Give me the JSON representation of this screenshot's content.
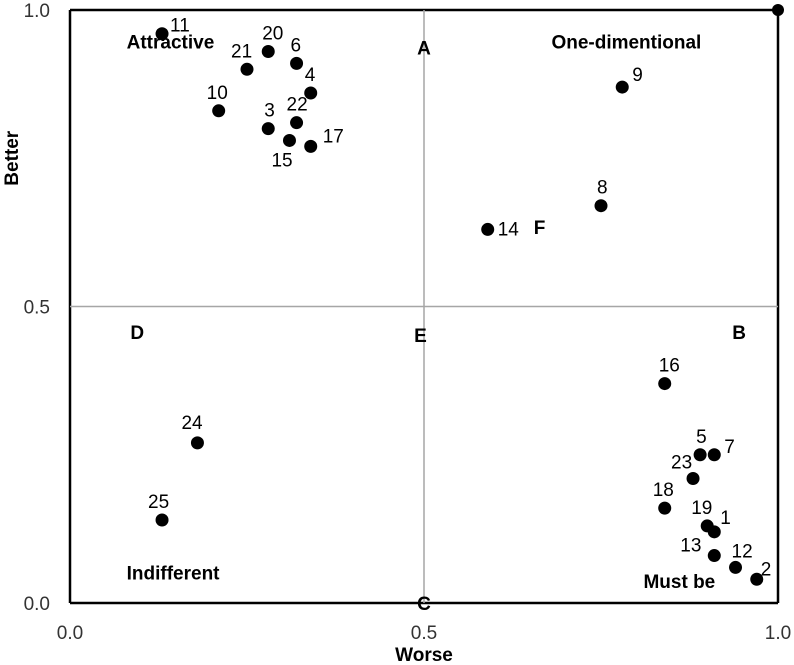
{
  "chart_data": {
    "type": "scatter",
    "title": "",
    "xlabel": "Worse",
    "ylabel": "Better",
    "xlim": [
      0.0,
      1.0
    ],
    "ylim": [
      0.0,
      1.0
    ],
    "x_ticks": [
      "0.0",
      "0.5",
      "1.0"
    ],
    "y_ticks": [
      "0.0",
      "0.5",
      "1.0"
    ],
    "divider_x": 0.5,
    "divider_y": 0.5,
    "grid": false,
    "points": [
      {
        "label": "11",
        "x": 0.13,
        "y": 0.96
      },
      {
        "label": "20",
        "x": 0.28,
        "y": 0.93
      },
      {
        "label": "21",
        "x": 0.25,
        "y": 0.9
      },
      {
        "label": "6",
        "x": 0.32,
        "y": 0.91
      },
      {
        "label": "4",
        "x": 0.34,
        "y": 0.86
      },
      {
        "label": "10",
        "x": 0.21,
        "y": 0.83
      },
      {
        "label": "22",
        "x": 0.32,
        "y": 0.81
      },
      {
        "label": "3",
        "x": 0.28,
        "y": 0.8
      },
      {
        "label": "17",
        "x": 0.34,
        "y": 0.77
      },
      {
        "label": "15",
        "x": 0.31,
        "y": 0.78
      },
      {
        "label": "9",
        "x": 0.78,
        "y": 0.87
      },
      {
        "label": "8",
        "x": 0.75,
        "y": 0.67
      },
      {
        "label": "14",
        "x": 0.59,
        "y": 0.63
      },
      {
        "label": "16",
        "x": 0.84,
        "y": 0.37
      },
      {
        "label": "5",
        "x": 0.89,
        "y": 0.25
      },
      {
        "label": "7",
        "x": 0.91,
        "y": 0.25
      },
      {
        "label": "23",
        "x": 0.88,
        "y": 0.21
      },
      {
        "label": "18",
        "x": 0.84,
        "y": 0.16
      },
      {
        "label": "19",
        "x": 0.9,
        "y": 0.13
      },
      {
        "label": "1",
        "x": 0.91,
        "y": 0.12
      },
      {
        "label": "13",
        "x": 0.91,
        "y": 0.08
      },
      {
        "label": "12",
        "x": 0.94,
        "y": 0.06
      },
      {
        "label": "2",
        "x": 0.97,
        "y": 0.04
      },
      {
        "label": "24",
        "x": 0.18,
        "y": 0.27
      },
      {
        "label": "25",
        "x": 0.13,
        "y": 0.14
      }
    ],
    "region_labels": {
      "attractive": "Attractive",
      "one_dimensional": "One-dimentional",
      "indifferent": "Indifferent",
      "must_be": "Must be",
      "a": "A",
      "b": "B",
      "c": "C",
      "d": "D",
      "e": "E",
      "f": "F"
    }
  }
}
